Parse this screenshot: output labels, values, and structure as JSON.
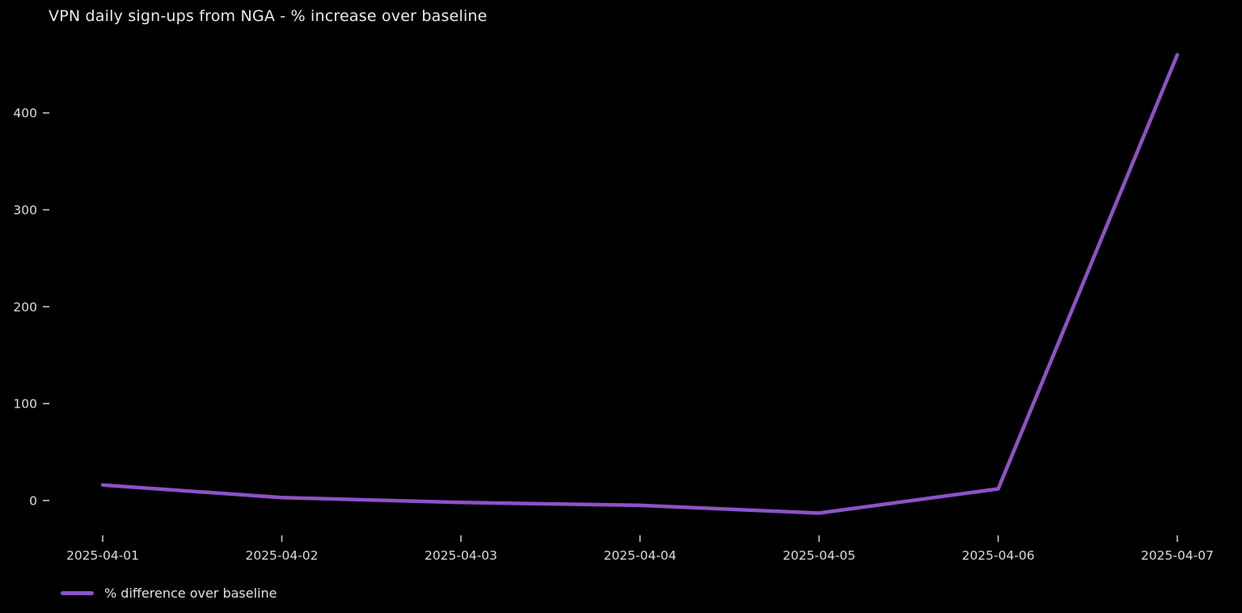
{
  "chart_data": {
    "type": "line",
    "title": "VPN daily sign-ups from NGA - % increase over baseline",
    "x": [
      "2025-04-01",
      "2025-04-02",
      "2025-04-03",
      "2025-04-04",
      "2025-04-05",
      "2025-04-06",
      "2025-04-07"
    ],
    "series": [
      {
        "name": "% difference over baseline",
        "values": [
          16,
          3,
          -2,
          -5,
          -13,
          12,
          460
        ],
        "color": "#8d52c7"
      }
    ],
    "xlabel": "",
    "ylabel": "",
    "y_ticks": [
      0,
      100,
      200,
      300,
      400
    ],
    "ylim": [
      -41,
      479
    ],
    "grid": false,
    "legend_position": "bottom-left",
    "colors": {
      "background": "#000000",
      "title_text": "#eaeaea",
      "tick_text": "#dcdcdc",
      "tick_mark": "#c8c8c8",
      "line": "#8d52c7"
    }
  }
}
